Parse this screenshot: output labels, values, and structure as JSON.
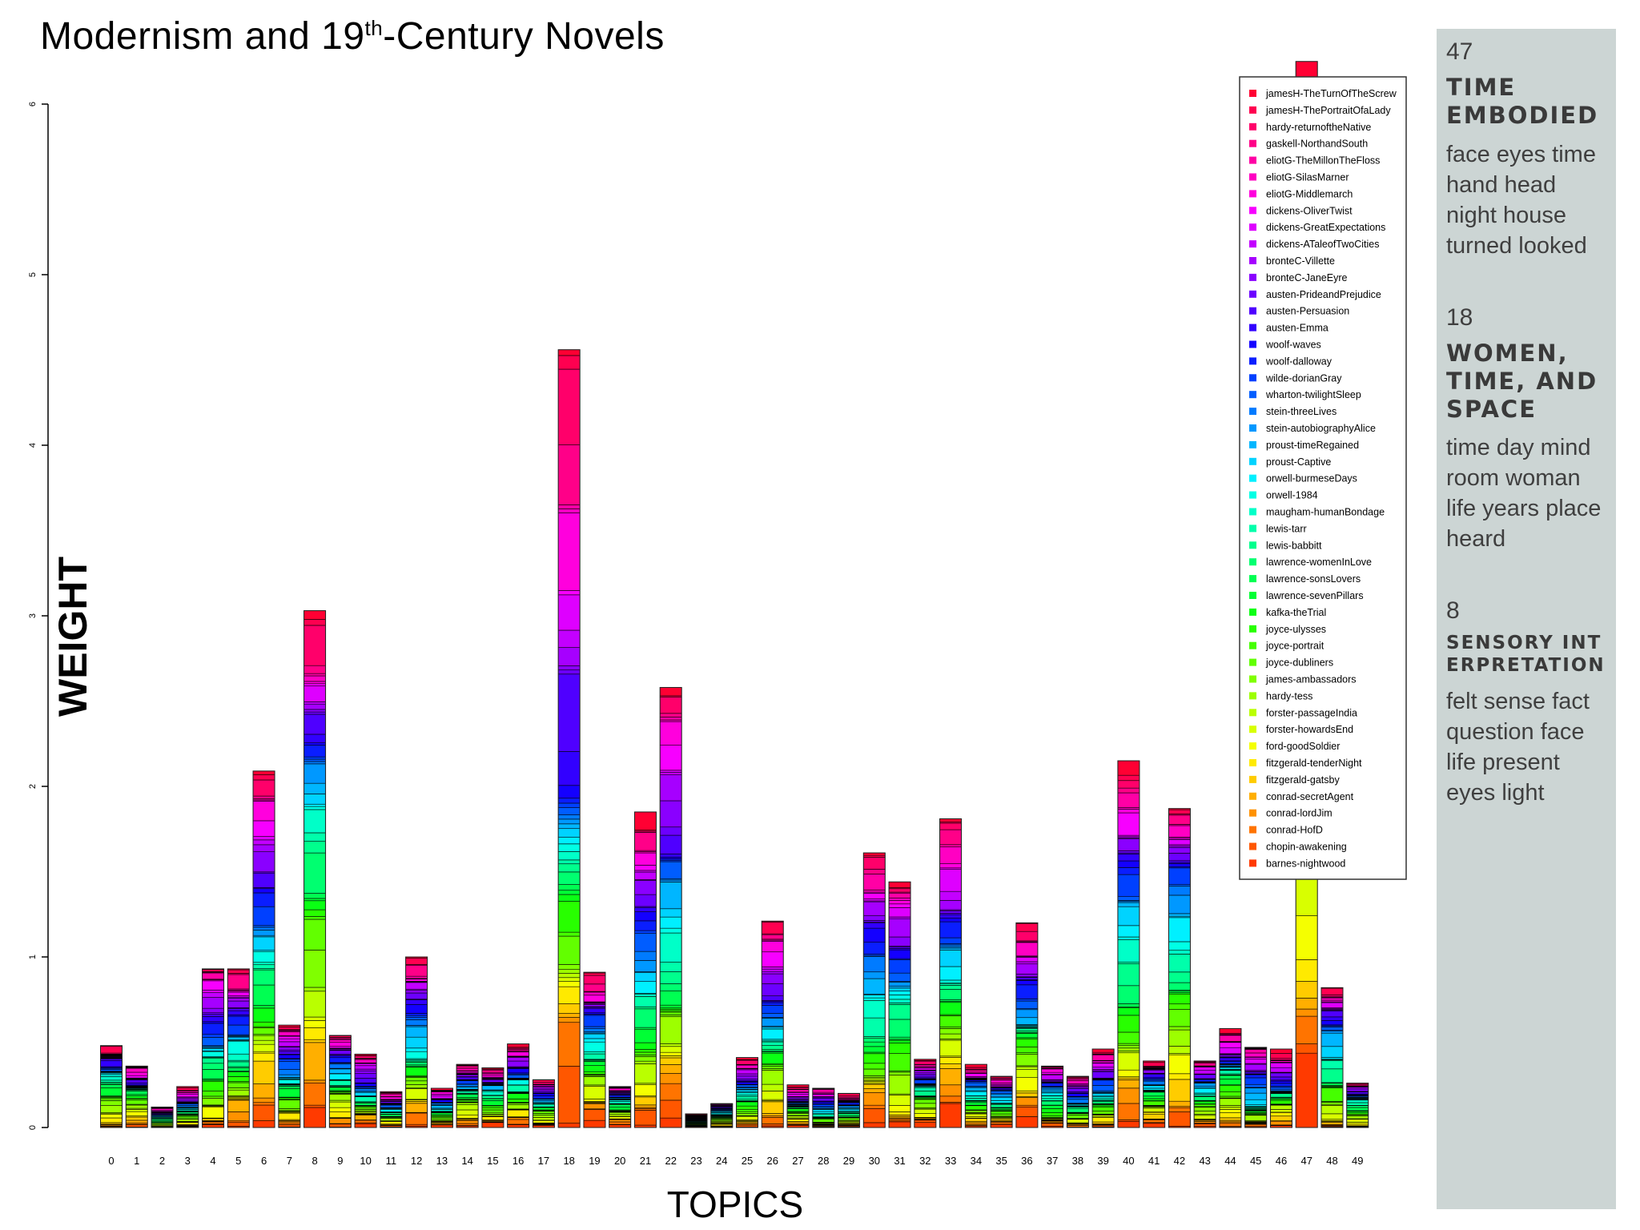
{
  "title": {
    "main": "Modernism and 19",
    "sup": "th",
    "rest": "-Century Novels"
  },
  "chart_data": {
    "type": "bar",
    "stacked": true,
    "title": "Modernism and 19th-Century Novels",
    "xlabel": "TOPICS",
    "ylabel": "WEIGHT",
    "ylim": [
      0,
      6
    ],
    "yticks": [
      "0",
      "1",
      "2",
      "3",
      "4",
      "5",
      "6"
    ],
    "categories": [
      "0",
      "1",
      "2",
      "3",
      "4",
      "5",
      "6",
      "7",
      "8",
      "9",
      "10",
      "11",
      "12",
      "13",
      "14",
      "15",
      "16",
      "17",
      "18",
      "19",
      "20",
      "21",
      "22",
      "23",
      "24",
      "25",
      "26",
      "27",
      "28",
      "29",
      "30",
      "31",
      "32",
      "33",
      "34",
      "35",
      "36",
      "37",
      "38",
      "39",
      "40",
      "41",
      "42",
      "43",
      "44",
      "45",
      "46",
      "47",
      "48",
      "49"
    ],
    "totals": [
      0.48,
      0.36,
      0.12,
      0.24,
      0.93,
      0.93,
      2.09,
      0.6,
      3.03,
      0.54,
      0.43,
      0.21,
      1.0,
      0.23,
      0.37,
      0.35,
      0.49,
      0.28,
      4.56,
      0.91,
      0.24,
      1.85,
      2.58,
      0.08,
      0.14,
      0.41,
      1.21,
      0.25,
      0.23,
      0.2,
      1.61,
      1.44,
      0.4,
      1.81,
      0.37,
      0.3,
      1.2,
      0.36,
      0.3,
      0.46,
      2.15,
      0.39,
      1.87,
      0.39,
      0.58,
      0.47,
      0.46,
      6.25,
      0.82,
      0.26
    ],
    "legend": {
      "position": "top-right",
      "entries": [
        {
          "label": "jamesH-TheTurnOfTheScrew",
          "color": "#ff0033"
        },
        {
          "label": "jamesH-ThePortraitOfaLady",
          "color": "#ff0050"
        },
        {
          "label": "hardy-returnoftheNative",
          "color": "#ff006a"
        },
        {
          "label": "gaskell-NorthandSouth",
          "color": "#ff0088"
        },
        {
          "label": "eliotG-TheMillonTheFloss",
          "color": "#ff00a5"
        },
        {
          "label": "eliotG-SilasMarner",
          "color": "#ff00c2"
        },
        {
          "label": "eliotG-Middlemarch",
          "color": "#ff00dd"
        },
        {
          "label": "dickens-OliverTwist",
          "color": "#f700ff"
        },
        {
          "label": "dickens-GreatExpectations",
          "color": "#de00ff"
        },
        {
          "label": "dickens-ATaleofTwoCities",
          "color": "#c300ff"
        },
        {
          "label": "bronteC-Villette",
          "color": "#a600ff"
        },
        {
          "label": "bronteC-JaneEyre",
          "color": "#8a00ff"
        },
        {
          "label": "austen-PrideandPrejudice",
          "color": "#6c00ff"
        },
        {
          "label": "austen-Persuasion",
          "color": "#4f00ff"
        },
        {
          "label": "austen-Emma",
          "color": "#3200ff"
        },
        {
          "label": "woolf-waves",
          "color": "#1400ff"
        },
        {
          "label": "woolf-dalloway",
          "color": "#0a1eff"
        },
        {
          "label": "wilde-dorianGray",
          "color": "#0040ff"
        },
        {
          "label": "wharton-twilightSleep",
          "color": "#005dff"
        },
        {
          "label": "stein-threeLives",
          "color": "#007bff"
        },
        {
          "label": "stein-autobiographyAlice",
          "color": "#0098ff"
        },
        {
          "label": "proust-timeRegained",
          "color": "#00b6ff"
        },
        {
          "label": "proust-Captive",
          "color": "#00d3ff"
        },
        {
          "label": "orwell-burmeseDays",
          "color": "#00f0ff"
        },
        {
          "label": "orwell-1984",
          "color": "#00ffe5"
        },
        {
          "label": "maugham-humanBondage",
          "color": "#00ffc8"
        },
        {
          "label": "lewis-tarr",
          "color": "#00ffab"
        },
        {
          "label": "lewis-babbitt",
          "color": "#00ff8d"
        },
        {
          "label": "lawrence-womenInLove",
          "color": "#00ff70"
        },
        {
          "label": "lawrence-sonsLovers",
          "color": "#00ff52"
        },
        {
          "label": "lawrence-sevenPillars",
          "color": "#00ff35"
        },
        {
          "label": "kafka-theTrial",
          "color": "#0aff14"
        },
        {
          "label": "joyce-ulysses",
          "color": "#28ff00"
        },
        {
          "label": "joyce-portrait",
          "color": "#45ff00"
        },
        {
          "label": "joyce-dubliners",
          "color": "#62ff00"
        },
        {
          "label": "james-ambassadors",
          "color": "#80ff00"
        },
        {
          "label": "hardy-tess",
          "color": "#9dff00"
        },
        {
          "label": "forster-passageIndia",
          "color": "#baff00"
        },
        {
          "label": "forster-howardsEnd",
          "color": "#d8ff00"
        },
        {
          "label": "ford-goodSoldier",
          "color": "#f5ff00"
        },
        {
          "label": "fitzgerald-tenderNight",
          "color": "#ffea00"
        },
        {
          "label": "fitzgerald-gatsby",
          "color": "#ffcc00"
        },
        {
          "label": "conrad-secretAgent",
          "color": "#ffaf00"
        },
        {
          "label": "conrad-lordJim",
          "color": "#ff9200"
        },
        {
          "label": "conrad-HofD",
          "color": "#ff7400"
        },
        {
          "label": "chopin-awakening",
          "color": "#ff5700"
        },
        {
          "label": "barnes-nightwood",
          "color": "#ff3a00"
        }
      ]
    }
  },
  "sidebar": {
    "topics": [
      {
        "number": "47",
        "name": "TIME EMBODIED",
        "words": "face eyes time hand head night house turned looked"
      },
      {
        "number": "18",
        "name": "WOMEN, TIME, AND SPACE",
        "words": "time day mind room woman life years place heard"
      },
      {
        "number": "8",
        "name": "SENSORY INTERPRETATION",
        "words": "felt sense fact question face life present eyes light"
      }
    ]
  }
}
